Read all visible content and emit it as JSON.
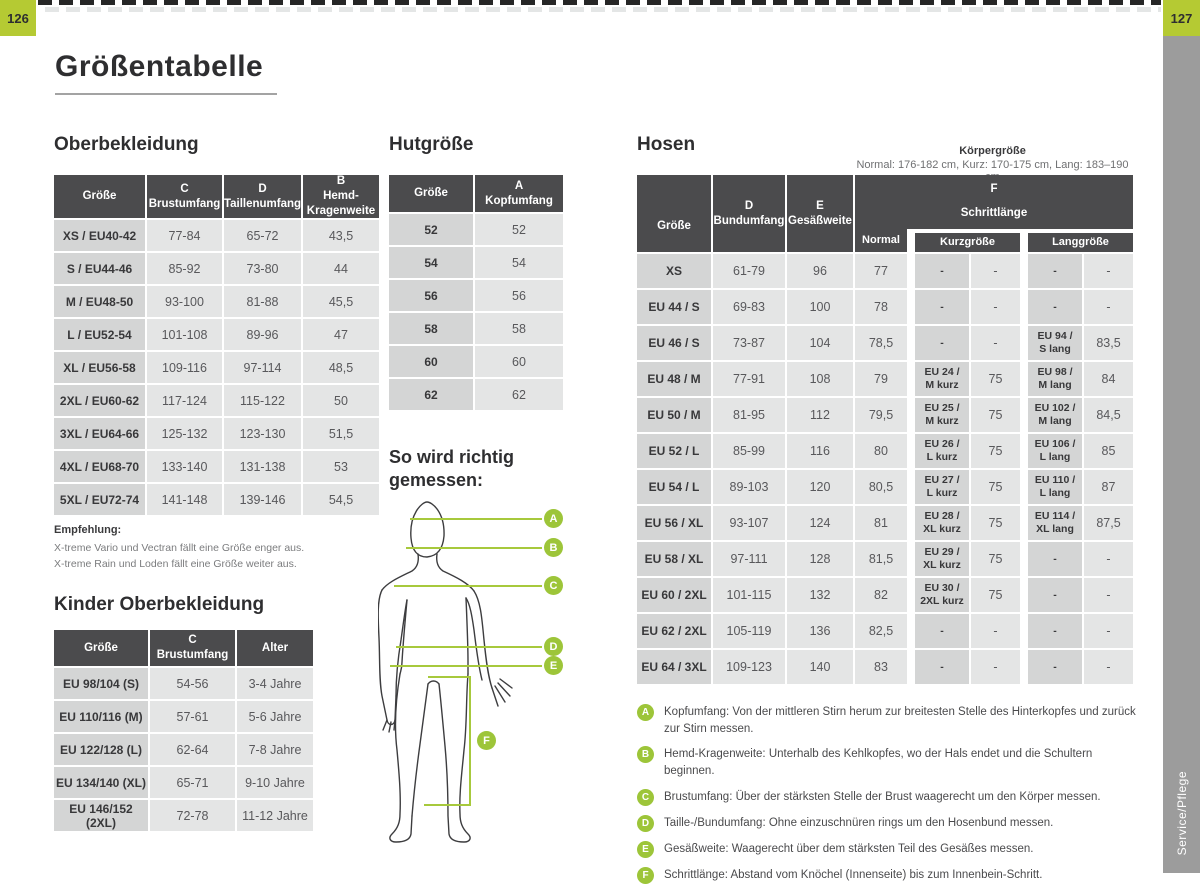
{
  "page": {
    "left_page_number": "126",
    "right_page_number": "127",
    "sidebar_label": "Service/Pflege",
    "title": "Größentabelle"
  },
  "colors": {
    "green_accent": "#9dc539",
    "tab_green": "#b5ca33",
    "table_header_bg": "#4b4b4d",
    "size_cell_bg": "#d4d5d5",
    "value_cell_bg": "#e4e5e5",
    "sidebar_gray": "#9c9c9c"
  },
  "oberbekleidung": {
    "heading": "Oberbekleidung",
    "columns": [
      "Größe",
      "C\nBrustumfang",
      "D\nTaillenumfang",
      "B\nHemd-\nKragenweite"
    ],
    "rows": [
      [
        "XS / EU40-42",
        "77-84",
        "65-72",
        "43,5"
      ],
      [
        "S / EU44-46",
        "85-92",
        "73-80",
        "44"
      ],
      [
        "M / EU48-50",
        "93-100",
        "81-88",
        "45,5"
      ],
      [
        "L / EU52-54",
        "101-108",
        "89-96",
        "47"
      ],
      [
        "XL / EU56-58",
        "109-116",
        "97-114",
        "48,5"
      ],
      [
        "2XL / EU60-62",
        "117-124",
        "115-122",
        "50"
      ],
      [
        "3XL / EU64-66",
        "125-132",
        "123-130",
        "51,5"
      ],
      [
        "4XL / EU68-70",
        "133-140",
        "131-138",
        "53"
      ],
      [
        "5XL / EU72-74",
        "141-148",
        "139-146",
        "54,5"
      ]
    ],
    "note_title": "Empfehlung:",
    "note_lines": [
      "X-treme Vario und Vectran fällt eine Größe enger aus.",
      "X-treme Rain und Loden fällt eine Größe weiter aus."
    ]
  },
  "hutgroesse": {
    "heading": "Hutgröße",
    "columns": [
      "Größe",
      "A\nKopfumfang"
    ],
    "rows": [
      [
        "52",
        "52"
      ],
      [
        "54",
        "54"
      ],
      [
        "56",
        "56"
      ],
      [
        "58",
        "58"
      ],
      [
        "60",
        "60"
      ],
      [
        "62",
        "62"
      ]
    ]
  },
  "kinder": {
    "heading": "Kinder Oberbekleidung",
    "columns": [
      "Größe",
      "C\nBrustumfang",
      "Alter"
    ],
    "rows": [
      [
        "EU 98/104 (S)",
        "54-56",
        "3-4 Jahre"
      ],
      [
        "EU 110/116 (M)",
        "57-61",
        "5-6 Jahre"
      ],
      [
        "EU 122/128 (L)",
        "62-64",
        "7-8 Jahre"
      ],
      [
        "EU 134/140 (XL)",
        "65-71",
        "9-10 Jahre"
      ],
      [
        "EU 146/152 (2XL)",
        "72-78",
        "11-12 Jahre"
      ]
    ]
  },
  "messen": {
    "heading": "So wird richtig\ngemessen:",
    "markers": [
      "A",
      "B",
      "C",
      "D",
      "E",
      "F"
    ]
  },
  "hosen": {
    "heading": "Hosen",
    "koerpergroesse_title": "Körpergröße",
    "koerpergroesse_text": "Normal: 176-182 cm, Kurz: 170-175 cm, Lang: 183–190 cm",
    "header": {
      "groesse": "Größe",
      "bund": "D\nBundumfang",
      "gesaess": "E\nGesäßweite",
      "f_letter": "F",
      "f_label": "Schrittlänge",
      "normal": "Normal",
      "kurz": "Kurzgröße",
      "lang": "Langgröße"
    },
    "rows": [
      [
        "XS",
        "61-79",
        "96",
        "77",
        "-",
        "-",
        "-",
        "-"
      ],
      [
        "EU 44 / S",
        "69-83",
        "100",
        "78",
        "-",
        "-",
        "-",
        "-"
      ],
      [
        "EU 46 / S",
        "73-87",
        "104",
        "78,5",
        "-",
        "-",
        "EU 94 /\nS lang",
        "83,5"
      ],
      [
        "EU 48 / M",
        "77-91",
        "108",
        "79",
        "EU 24 /\nM kurz",
        "75",
        "EU 98 /\nM lang",
        "84"
      ],
      [
        "EU 50 / M",
        "81-95",
        "112",
        "79,5",
        "EU 25 /\nM kurz",
        "75",
        "EU 102 /\nM lang",
        "84,5"
      ],
      [
        "EU 52 / L",
        "85-99",
        "116",
        "80",
        "EU 26 /\nL kurz",
        "75",
        "EU 106 /\nL lang",
        "85"
      ],
      [
        "EU 54 / L",
        "89-103",
        "120",
        "80,5",
        "EU 27 /\nL kurz",
        "75",
        "EU 110 /\nL lang",
        "87"
      ],
      [
        "EU 56 / XL",
        "93-107",
        "124",
        "81",
        "EU 28 /\nXL kurz",
        "75",
        "EU 114 /\nXL lang",
        "87,5"
      ],
      [
        "EU 58 / XL",
        "97-111",
        "128",
        "81,5",
        "EU 29 /\nXL kurz",
        "75",
        "-",
        "-"
      ],
      [
        "EU 60 / 2XL",
        "101-115",
        "132",
        "82",
        "EU 30 /\n2XL kurz",
        "75",
        "-",
        "-"
      ],
      [
        "EU 62 / 2XL",
        "105-119",
        "136",
        "82,5",
        "-",
        "-",
        "-",
        "-"
      ],
      [
        "EU 64 / 3XL",
        "109-123",
        "140",
        "83",
        "-",
        "-",
        "-",
        "-"
      ]
    ]
  },
  "legend": {
    "items": [
      {
        "letter": "A",
        "text": "Kopfumfang: Von der mittleren Stirn herum zur breitesten Stelle des Hinterkopfes und zurück zur Stirn messen."
      },
      {
        "letter": "B",
        "text": "Hemd-Kragenweite: Unterhalb des Kehlkopfes, wo der Hals endet und die Schultern beginnen."
      },
      {
        "letter": "C",
        "text": "Brustumfang: Über der stärksten Stelle der Brust waagerecht um den Körper messen."
      },
      {
        "letter": "D",
        "text": "Taille-/Bundumfang: Ohne einzuschnüren rings um den Hosenbund messen."
      },
      {
        "letter": "E",
        "text": "Gesäßweite: Waagerecht über dem stärksten Teil des Gesäßes messen."
      },
      {
        "letter": "F",
        "text": "Schrittlänge: Abstand vom Knöchel (Innenseite) bis zum Innenbein-Schritt."
      }
    ]
  }
}
